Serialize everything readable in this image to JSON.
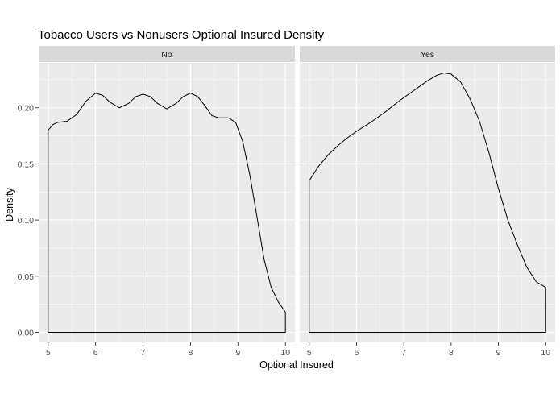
{
  "chart_data": {
    "type": "line",
    "title": "Tobacco Users vs Nonusers Optional Insured Density",
    "xlabel": "Optional Insured",
    "ylabel": "Density",
    "xlim": [
      4.8,
      10.2
    ],
    "ylim": [
      -0.009,
      0.24
    ],
    "x_ticks": [
      5,
      6,
      7,
      8,
      9,
      10
    ],
    "y_ticks": [
      0.0,
      0.05,
      0.1,
      0.15,
      0.2
    ],
    "y_tick_labels": [
      "0.00",
      "0.05",
      "0.10",
      "0.15",
      "0.20"
    ],
    "grid": true,
    "facets": [
      {
        "label": "No",
        "points": [
          [
            5.0,
            0.18
          ],
          [
            5.1,
            0.185
          ],
          [
            5.2,
            0.187
          ],
          [
            5.4,
            0.188
          ],
          [
            5.6,
            0.194
          ],
          [
            5.8,
            0.206
          ],
          [
            6.0,
            0.213
          ],
          [
            6.15,
            0.211
          ],
          [
            6.3,
            0.205
          ],
          [
            6.5,
            0.2
          ],
          [
            6.7,
            0.204
          ],
          [
            6.85,
            0.21
          ],
          [
            7.0,
            0.212
          ],
          [
            7.15,
            0.21
          ],
          [
            7.3,
            0.204
          ],
          [
            7.5,
            0.199
          ],
          [
            7.7,
            0.204
          ],
          [
            7.85,
            0.21
          ],
          [
            8.0,
            0.213
          ],
          [
            8.15,
            0.21
          ],
          [
            8.3,
            0.202
          ],
          [
            8.45,
            0.193
          ],
          [
            8.6,
            0.191
          ],
          [
            8.8,
            0.191
          ],
          [
            8.95,
            0.187
          ],
          [
            9.1,
            0.17
          ],
          [
            9.25,
            0.14
          ],
          [
            9.4,
            0.103
          ],
          [
            9.55,
            0.065
          ],
          [
            9.7,
            0.04
          ],
          [
            9.85,
            0.027
          ],
          [
            10.0,
            0.018
          ]
        ]
      },
      {
        "label": "Yes",
        "points": [
          [
            5.0,
            0.135
          ],
          [
            5.2,
            0.148
          ],
          [
            5.4,
            0.158
          ],
          [
            5.6,
            0.166
          ],
          [
            5.8,
            0.173
          ],
          [
            6.0,
            0.179
          ],
          [
            6.3,
            0.187
          ],
          [
            6.6,
            0.196
          ],
          [
            6.9,
            0.206
          ],
          [
            7.2,
            0.215
          ],
          [
            7.5,
            0.224
          ],
          [
            7.7,
            0.229
          ],
          [
            7.85,
            0.231
          ],
          [
            8.0,
            0.23
          ],
          [
            8.2,
            0.223
          ],
          [
            8.4,
            0.208
          ],
          [
            8.6,
            0.188
          ],
          [
            8.8,
            0.16
          ],
          [
            9.0,
            0.128
          ],
          [
            9.2,
            0.1
          ],
          [
            9.4,
            0.078
          ],
          [
            9.6,
            0.058
          ],
          [
            9.8,
            0.045
          ],
          [
            10.0,
            0.04
          ]
        ]
      }
    ]
  }
}
